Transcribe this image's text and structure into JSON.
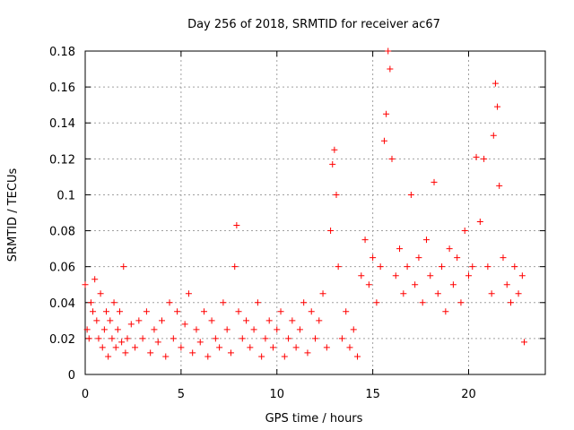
{
  "chart_data": {
    "type": "scatter",
    "title": "Day 256 of 2018, SRMTID for receiver ac67",
    "xlabel": "GPS time / hours",
    "ylabel": "SRMTID / TECUs",
    "xlim": [
      0,
      24
    ],
    "ylim": [
      0,
      0.18
    ],
    "xticks": [
      0,
      5,
      10,
      15,
      20
    ],
    "yticks": [
      0,
      0.02,
      0.04,
      0.06,
      0.08,
      0.1,
      0.12,
      0.14,
      0.16,
      0.18
    ],
    "xtick_labels": [
      "0",
      "5",
      "10",
      "15",
      "20"
    ],
    "ytick_labels": [
      "0",
      "0.02",
      "0.04",
      "0.06",
      "0.08",
      "0.1",
      "0.12",
      "0.14",
      "0.16",
      "0.18"
    ],
    "grid": true,
    "marker": "+",
    "color": "#ff0000",
    "series": [
      {
        "name": "SRMTID",
        "points": [
          [
            0.0,
            0.05
          ],
          [
            0.1,
            0.025
          ],
          [
            0.2,
            0.02
          ],
          [
            0.3,
            0.04
          ],
          [
            0.4,
            0.035
          ],
          [
            0.5,
            0.053
          ],
          [
            0.6,
            0.03
          ],
          [
            0.7,
            0.02
          ],
          [
            0.8,
            0.045
          ],
          [
            0.9,
            0.015
          ],
          [
            1.0,
            0.025
          ],
          [
            1.1,
            0.035
          ],
          [
            1.2,
            0.01
          ],
          [
            1.3,
            0.03
          ],
          [
            1.4,
            0.02
          ],
          [
            1.5,
            0.04
          ],
          [
            1.6,
            0.015
          ],
          [
            1.7,
            0.025
          ],
          [
            1.8,
            0.035
          ],
          [
            1.9,
            0.018
          ],
          [
            2.0,
            0.06
          ],
          [
            2.1,
            0.012
          ],
          [
            2.2,
            0.02
          ],
          [
            2.4,
            0.028
          ],
          [
            2.6,
            0.015
          ],
          [
            2.8,
            0.03
          ],
          [
            3.0,
            0.02
          ],
          [
            3.2,
            0.035
          ],
          [
            3.4,
            0.012
          ],
          [
            3.6,
            0.025
          ],
          [
            3.8,
            0.018
          ],
          [
            4.0,
            0.03
          ],
          [
            4.2,
            0.01
          ],
          [
            4.4,
            0.04
          ],
          [
            4.6,
            0.02
          ],
          [
            4.8,
            0.035
          ],
          [
            5.0,
            0.015
          ],
          [
            5.2,
            0.028
          ],
          [
            5.4,
            0.045
          ],
          [
            5.6,
            0.012
          ],
          [
            5.8,
            0.025
          ],
          [
            6.0,
            0.018
          ],
          [
            6.2,
            0.035
          ],
          [
            6.4,
            0.01
          ],
          [
            6.6,
            0.03
          ],
          [
            6.8,
            0.02
          ],
          [
            7.0,
            0.015
          ],
          [
            7.2,
            0.04
          ],
          [
            7.4,
            0.025
          ],
          [
            7.6,
            0.012
          ],
          [
            7.8,
            0.06
          ],
          [
            7.9,
            0.083
          ],
          [
            8.0,
            0.035
          ],
          [
            8.2,
            0.02
          ],
          [
            8.4,
            0.03
          ],
          [
            8.6,
            0.015
          ],
          [
            8.8,
            0.025
          ],
          [
            9.0,
            0.04
          ],
          [
            9.2,
            0.01
          ],
          [
            9.4,
            0.02
          ],
          [
            9.6,
            0.03
          ],
          [
            9.8,
            0.015
          ],
          [
            10.0,
            0.025
          ],
          [
            10.2,
            0.035
          ],
          [
            10.4,
            0.01
          ],
          [
            10.6,
            0.02
          ],
          [
            10.8,
            0.03
          ],
          [
            11.0,
            0.015
          ],
          [
            11.2,
            0.025
          ],
          [
            11.4,
            0.04
          ],
          [
            11.6,
            0.012
          ],
          [
            11.8,
            0.035
          ],
          [
            12.0,
            0.02
          ],
          [
            12.2,
            0.03
          ],
          [
            12.4,
            0.045
          ],
          [
            12.6,
            0.015
          ],
          [
            12.8,
            0.08
          ],
          [
            12.9,
            0.117
          ],
          [
            13.0,
            0.125
          ],
          [
            13.1,
            0.1
          ],
          [
            13.2,
            0.06
          ],
          [
            13.4,
            0.02
          ],
          [
            13.6,
            0.035
          ],
          [
            13.8,
            0.015
          ],
          [
            14.0,
            0.025
          ],
          [
            14.2,
            0.01
          ],
          [
            14.4,
            0.055
          ],
          [
            14.6,
            0.075
          ],
          [
            14.8,
            0.05
          ],
          [
            15.0,
            0.065
          ],
          [
            15.2,
            0.04
          ],
          [
            15.4,
            0.06
          ],
          [
            15.6,
            0.13
          ],
          [
            15.7,
            0.145
          ],
          [
            15.8,
            0.18
          ],
          [
            15.9,
            0.17
          ],
          [
            16.0,
            0.12
          ],
          [
            16.2,
            0.055
          ],
          [
            16.4,
            0.07
          ],
          [
            16.6,
            0.045
          ],
          [
            16.8,
            0.06
          ],
          [
            17.0,
            0.1
          ],
          [
            17.2,
            0.05
          ],
          [
            17.4,
            0.065
          ],
          [
            17.6,
            0.04
          ],
          [
            17.8,
            0.075
          ],
          [
            18.0,
            0.055
          ],
          [
            18.2,
            0.107
          ],
          [
            18.4,
            0.045
          ],
          [
            18.6,
            0.06
          ],
          [
            18.8,
            0.035
          ],
          [
            19.0,
            0.07
          ],
          [
            19.2,
            0.05
          ],
          [
            19.4,
            0.065
          ],
          [
            19.6,
            0.04
          ],
          [
            19.8,
            0.08
          ],
          [
            20.0,
            0.055
          ],
          [
            20.2,
            0.06
          ],
          [
            20.4,
            0.121
          ],
          [
            20.6,
            0.085
          ],
          [
            20.8,
            0.12
          ],
          [
            21.0,
            0.06
          ],
          [
            21.2,
            0.045
          ],
          [
            21.3,
            0.133
          ],
          [
            21.4,
            0.162
          ],
          [
            21.5,
            0.149
          ],
          [
            21.6,
            0.105
          ],
          [
            21.8,
            0.065
          ],
          [
            22.0,
            0.05
          ],
          [
            22.2,
            0.04
          ],
          [
            22.4,
            0.06
          ],
          [
            22.6,
            0.045
          ],
          [
            22.8,
            0.055
          ],
          [
            22.9,
            0.018
          ]
        ]
      }
    ]
  }
}
